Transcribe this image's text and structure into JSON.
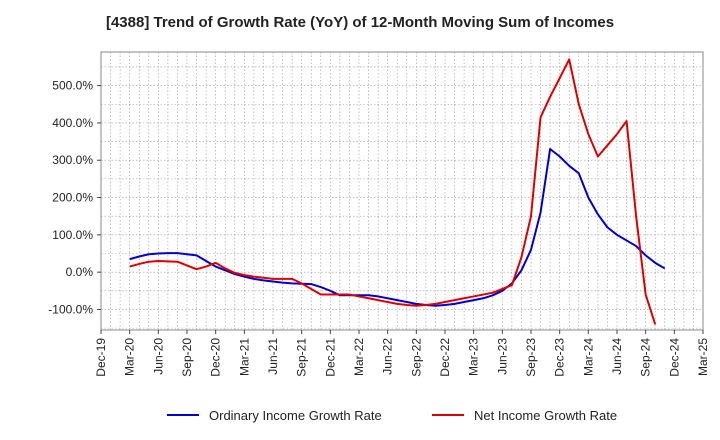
{
  "chart_data": {
    "type": "line",
    "title": "[4388]  Trend of Growth Rate (YoY) of 12-Month Moving Sum of Incomes",
    "xlabel": "",
    "ylabel": "",
    "x_tick_labels": [
      "Dec-19",
      "Mar-20",
      "Jun-20",
      "Sep-20",
      "Dec-20",
      "Mar-21",
      "Jun-21",
      "Sep-21",
      "Dec-21",
      "Mar-22",
      "Jun-22",
      "Sep-22",
      "Dec-22",
      "Mar-23",
      "Jun-23",
      "Sep-23",
      "Dec-23",
      "Mar-24",
      "Jun-24",
      "Sep-24",
      "Dec-24",
      "Mar-25"
    ],
    "y_ticks": [
      -100,
      0,
      100,
      200,
      300,
      400,
      500
    ],
    "y_tick_labels": [
      "-100.0%",
      "0.0%",
      "100.0%",
      "200.0%",
      "300.0%",
      "400.0%",
      "500.0%"
    ],
    "ylim": [
      -155,
      590
    ],
    "x_months": [
      "2019-12",
      "2020-01",
      "2020-02",
      "2020-03",
      "2020-04",
      "2020-05",
      "2020-06",
      "2020-07",
      "2020-08",
      "2020-09",
      "2020-10",
      "2020-11",
      "2020-12",
      "2021-01",
      "2021-02",
      "2021-03",
      "2021-04",
      "2021-05",
      "2021-06",
      "2021-07",
      "2021-08",
      "2021-09",
      "2021-10",
      "2021-11",
      "2021-12",
      "2022-01",
      "2022-02",
      "2022-03",
      "2022-04",
      "2022-05",
      "2022-06",
      "2022-07",
      "2022-08",
      "2022-09",
      "2022-10",
      "2022-11",
      "2022-12",
      "2023-01",
      "2023-02",
      "2023-03",
      "2023-04",
      "2023-05",
      "2023-06",
      "2023-07",
      "2023-08",
      "2023-09",
      "2023-10",
      "2023-11",
      "2023-12",
      "2024-01",
      "2024-02",
      "2024-03",
      "2024-04",
      "2024-05",
      "2024-06",
      "2024-07",
      "2024-08",
      "2024-09",
      "2024-10",
      "2024-11",
      "2024-12",
      "2025-01",
      "2025-02",
      "2025-03"
    ],
    "grid": true,
    "legend_position": "bottom",
    "series": [
      {
        "name": "Ordinary Income Growth Rate",
        "color": "#0000cc",
        "start_month": "2020-03",
        "values": [
          35,
          42,
          48,
          50,
          51,
          51,
          48,
          45,
          30,
          15,
          5,
          -5,
          -12,
          -18,
          -22,
          -25,
          -28,
          -30,
          -31,
          -32,
          -40,
          -50,
          -62,
          -62,
          -62,
          -62,
          -65,
          -70,
          -75,
          -80,
          -85,
          -88,
          -90,
          -88,
          -85,
          -80,
          -75,
          -70,
          -62,
          -50,
          -30,
          5,
          60,
          160,
          330,
          310,
          285,
          265,
          200,
          155,
          120,
          100,
          85,
          70,
          45,
          25,
          10
        ]
      },
      {
        "name": "Net Income Growth Rate",
        "color": "#dd0000",
        "start_month": "2020-03",
        "values": [
          15,
          22,
          28,
          30,
          29,
          28,
          18,
          8,
          15,
          25,
          10,
          -2,
          -8,
          -12,
          -15,
          -18,
          -18,
          -18,
          -30,
          -45,
          -60,
          -60,
          -60,
          -60,
          -65,
          -70,
          -75,
          -80,
          -85,
          -88,
          -90,
          -88,
          -85,
          -80,
          -75,
          -70,
          -65,
          -60,
          -55,
          -45,
          -35,
          40,
          150,
          415,
          470,
          520,
          570,
          450,
          370,
          310,
          340,
          370,
          405,
          150,
          -60,
          -140
        ]
      }
    ]
  }
}
